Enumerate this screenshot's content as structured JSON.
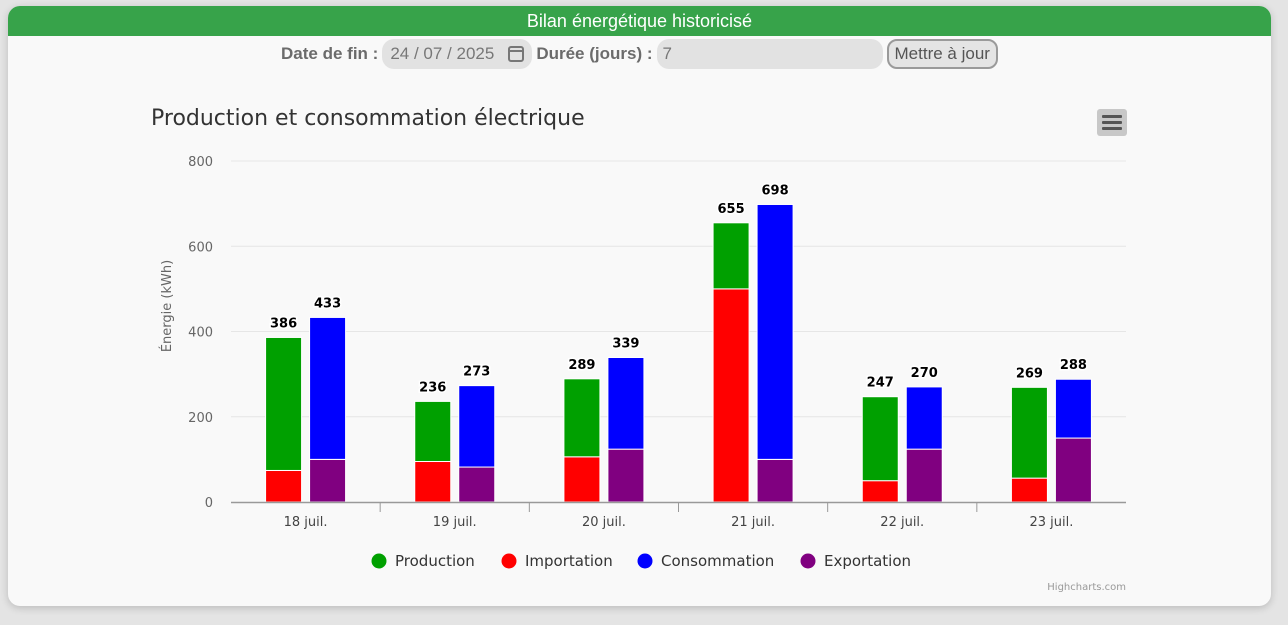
{
  "header": {
    "title": "Bilan énergétique historicisé"
  },
  "controls": {
    "end_date_label": "Date de fin :",
    "end_date_value": "24 / 07 / 2025",
    "duration_label": "Durée (jours) :",
    "duration_value": "7",
    "update_button": "Mettre à jour"
  },
  "menu": {
    "icon": "hamburger-menu-icon"
  },
  "credits": "Highcharts.com",
  "chart_data": {
    "type": "bar",
    "title": "Production et consommation électrique",
    "ylabel": "Énergie (kWh)",
    "xlabel": "",
    "ylim": [
      0,
      800
    ],
    "yticks": [
      0,
      200,
      400,
      600,
      800
    ],
    "categories": [
      "18 juil.",
      "19 juil.",
      "20 juil.",
      "21 juil.",
      "22 juil.",
      "23 juil."
    ],
    "grid": true,
    "legend_position": "bottom-center",
    "stacks": [
      {
        "name": "production-stack",
        "totals": [
          386,
          236,
          289,
          655,
          247,
          269
        ],
        "series": [
          {
            "name": "Importation",
            "color": "#ff0000",
            "values": [
              74,
              95,
              106,
              500,
              50,
              56
            ]
          },
          {
            "name": "Production",
            "color": "#00a000",
            "values": [
              312,
              141,
              183,
              155,
              197,
              213
            ]
          }
        ]
      },
      {
        "name": "consumption-stack",
        "totals": [
          433,
          273,
          339,
          698,
          270,
          288
        ],
        "series": [
          {
            "name": "Exportation",
            "color": "#800080",
            "values": [
              100,
              82,
              124,
              100,
              124,
              150
            ]
          },
          {
            "name": "Consommation",
            "color": "#0000ff",
            "values": [
              333,
              191,
              215,
              598,
              146,
              138
            ]
          }
        ]
      }
    ],
    "legend": [
      {
        "name": "Production",
        "color": "#00a000"
      },
      {
        "name": "Importation",
        "color": "#ff0000"
      },
      {
        "name": "Consommation",
        "color": "#0000ff"
      },
      {
        "name": "Exportation",
        "color": "#800080"
      }
    ]
  }
}
